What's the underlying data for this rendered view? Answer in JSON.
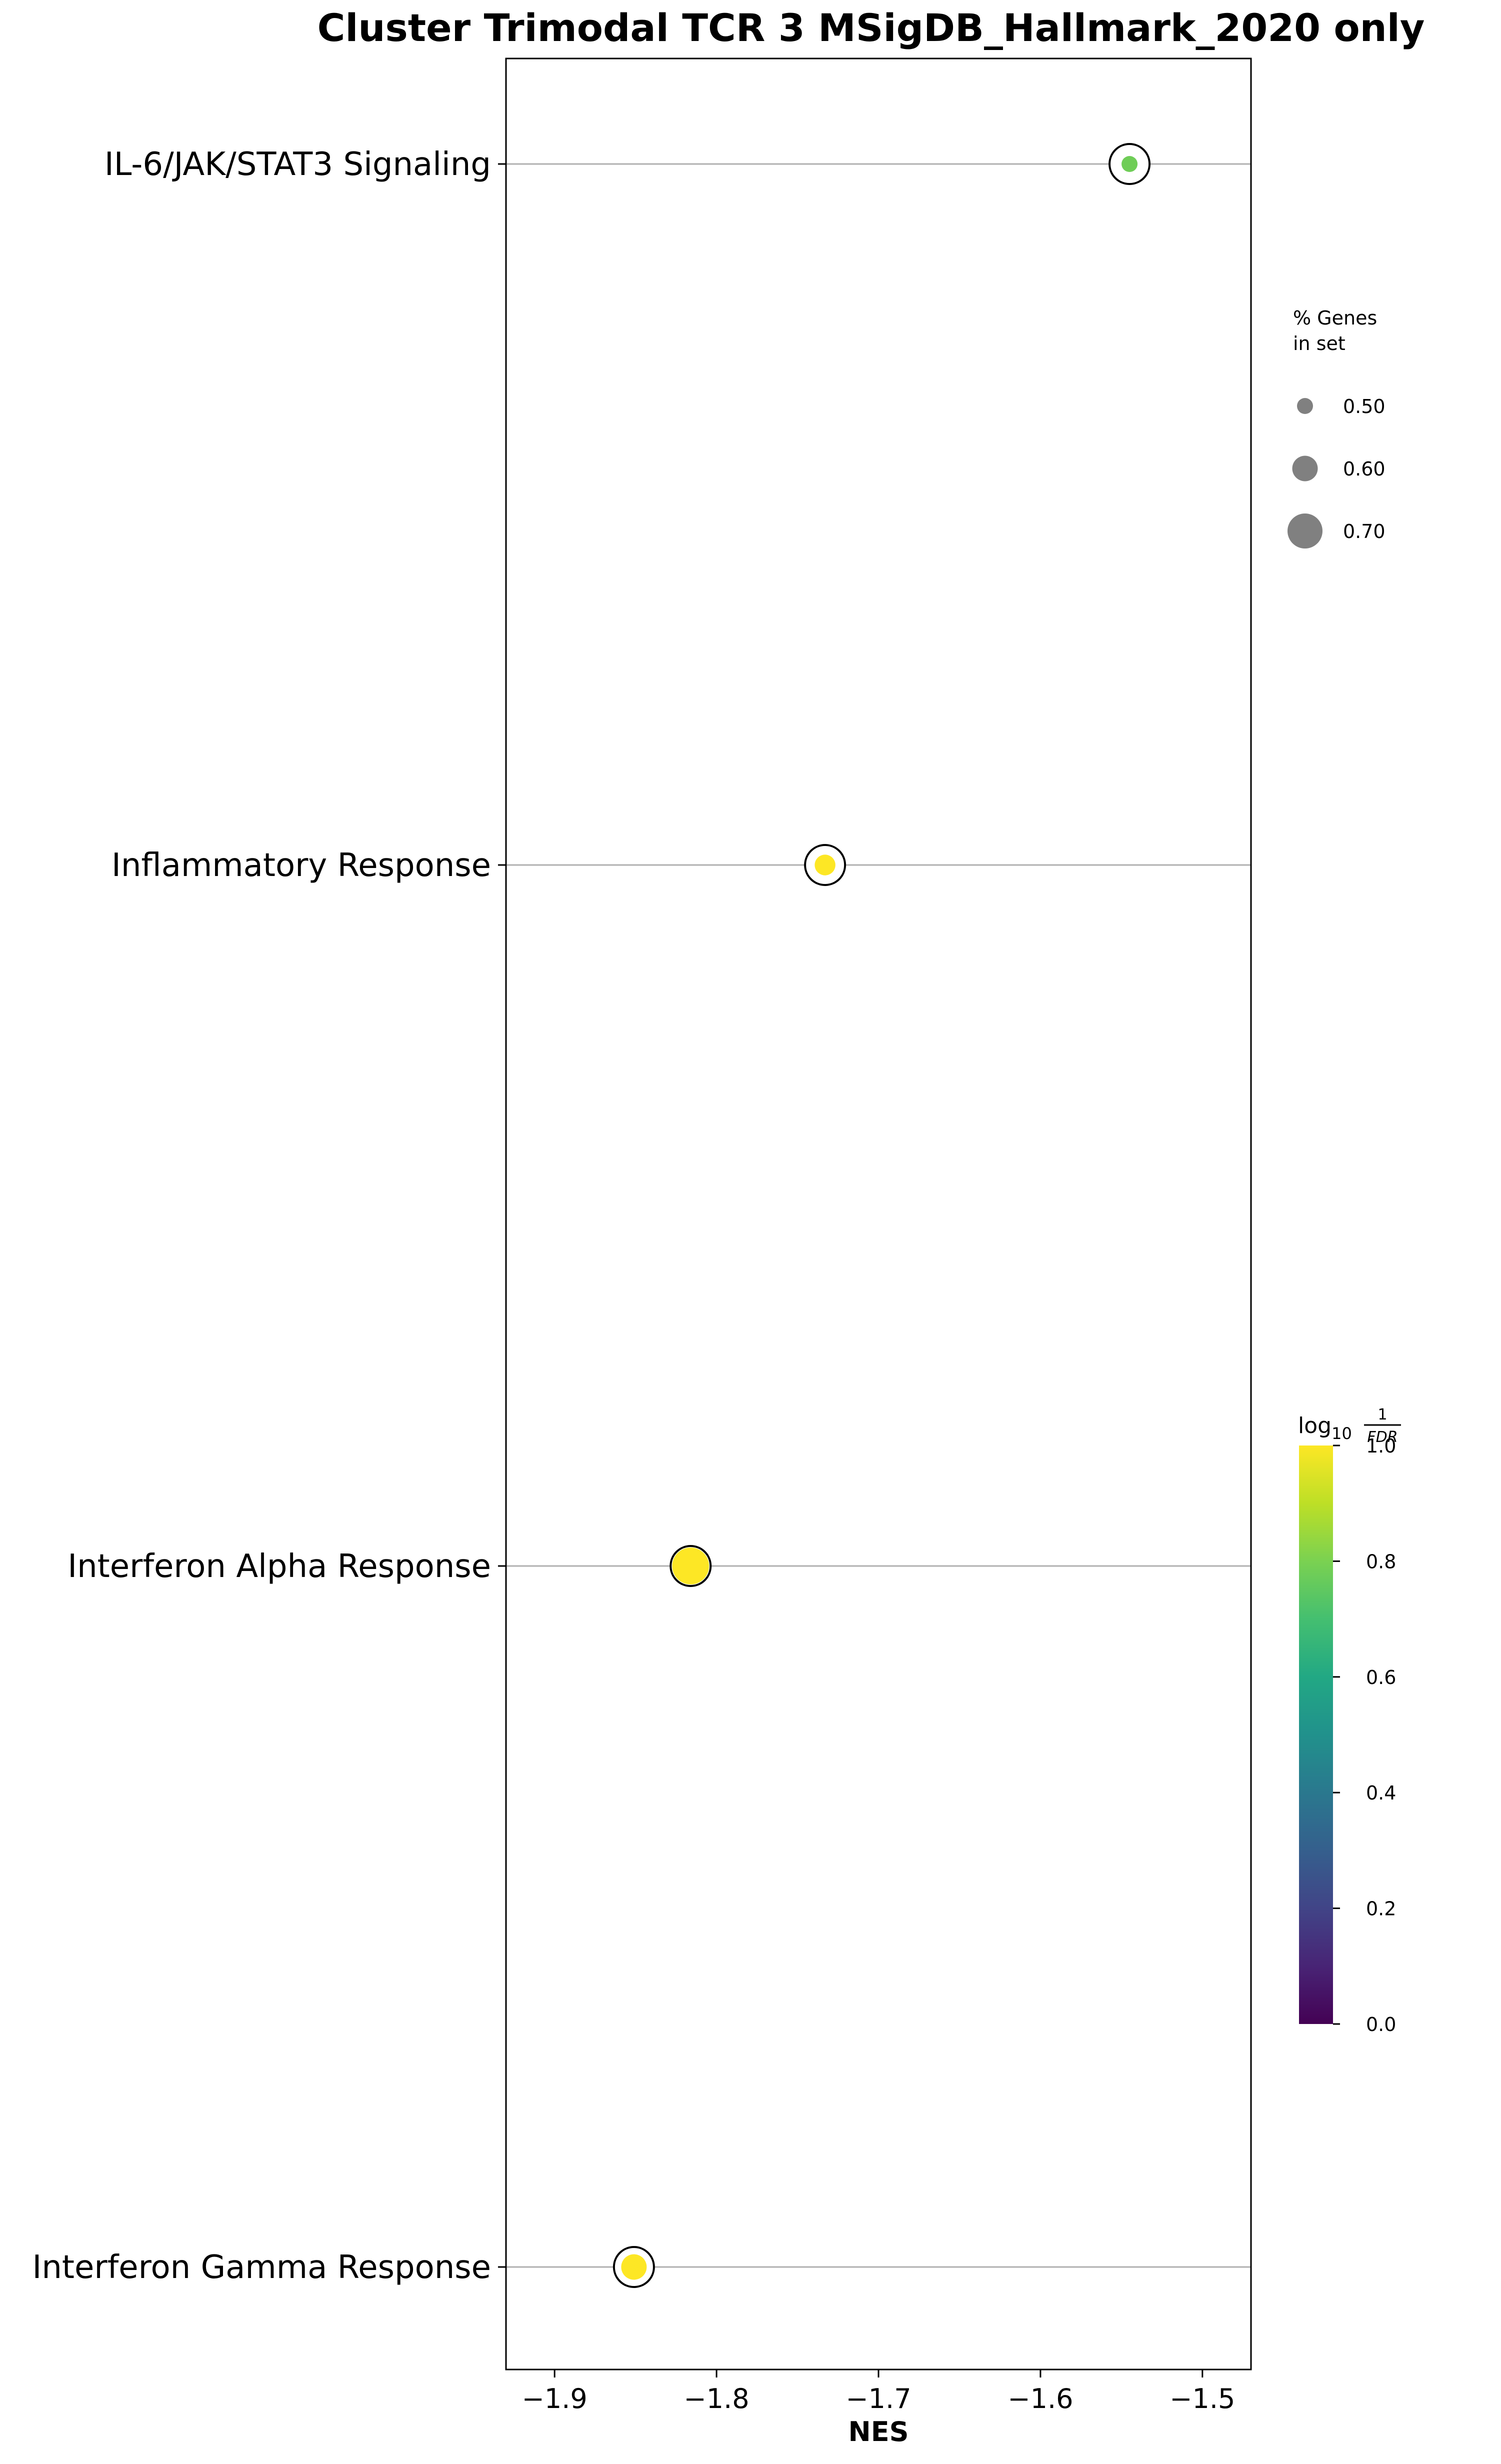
{
  "chart_data": {
    "type": "scatter",
    "title": "Cluster Trimodal TCR 3 MSigDB_Hallmark_2020 only",
    "xlabel": "NES",
    "ylabel": "",
    "xlim": [
      -1.93,
      -1.47
    ],
    "x_ticks": [
      -1.9,
      -1.8,
      -1.7,
      -1.6,
      -1.5
    ],
    "x_tick_labels": [
      "−1.9",
      "−1.8",
      "−1.7",
      "−1.6",
      "−1.5"
    ],
    "grid": "horizontal lines at each category",
    "categories": [
      "IL-6/JAK/STAT3 Signaling",
      "Inflammatory Response",
      "Interferon Alpha Response",
      "Interferon Gamma Response"
    ],
    "points": [
      {
        "term": "IL-6/JAK/STAT3 Signaling",
        "nes": -1.545,
        "pct_genes": 0.5,
        "log10_inv_fdr": 0.78
      },
      {
        "term": "Inflammatory Response",
        "nes": -1.733,
        "pct_genes": 0.55,
        "log10_inv_fdr": 1.0
      },
      {
        "term": "Interferon Alpha Response",
        "nes": -1.816,
        "pct_genes": 0.72,
        "log10_inv_fdr": 1.0
      },
      {
        "term": "Interferon Gamma Response",
        "nes": -1.851,
        "pct_genes": 0.6,
        "log10_inv_fdr": 1.0
      }
    ],
    "size_legend": {
      "title_lines": [
        "% Genes",
        "in set"
      ],
      "entries": [
        {
          "value": 0.5,
          "label": "0.50"
        },
        {
          "value": 0.6,
          "label": "0.60"
        },
        {
          "value": 0.7,
          "label": "0.70"
        }
      ],
      "placement": "right"
    },
    "colorbar": {
      "title_prefix": "log",
      "title_sub": "10",
      "title_num": "1",
      "title_den": "FDR",
      "range": [
        0.0,
        1.0
      ],
      "ticks": [
        0.0,
        0.2,
        0.4,
        0.6,
        0.8,
        1.0
      ],
      "tick_labels": [
        "0.0",
        "0.2",
        "0.4",
        "0.6",
        "0.8",
        "1.0"
      ],
      "colormap": "viridis",
      "placement": "right"
    },
    "colors": {
      "gridline": "#b0b0b0",
      "marker_edge": "#000000",
      "legend_marker": "#808080"
    }
  }
}
